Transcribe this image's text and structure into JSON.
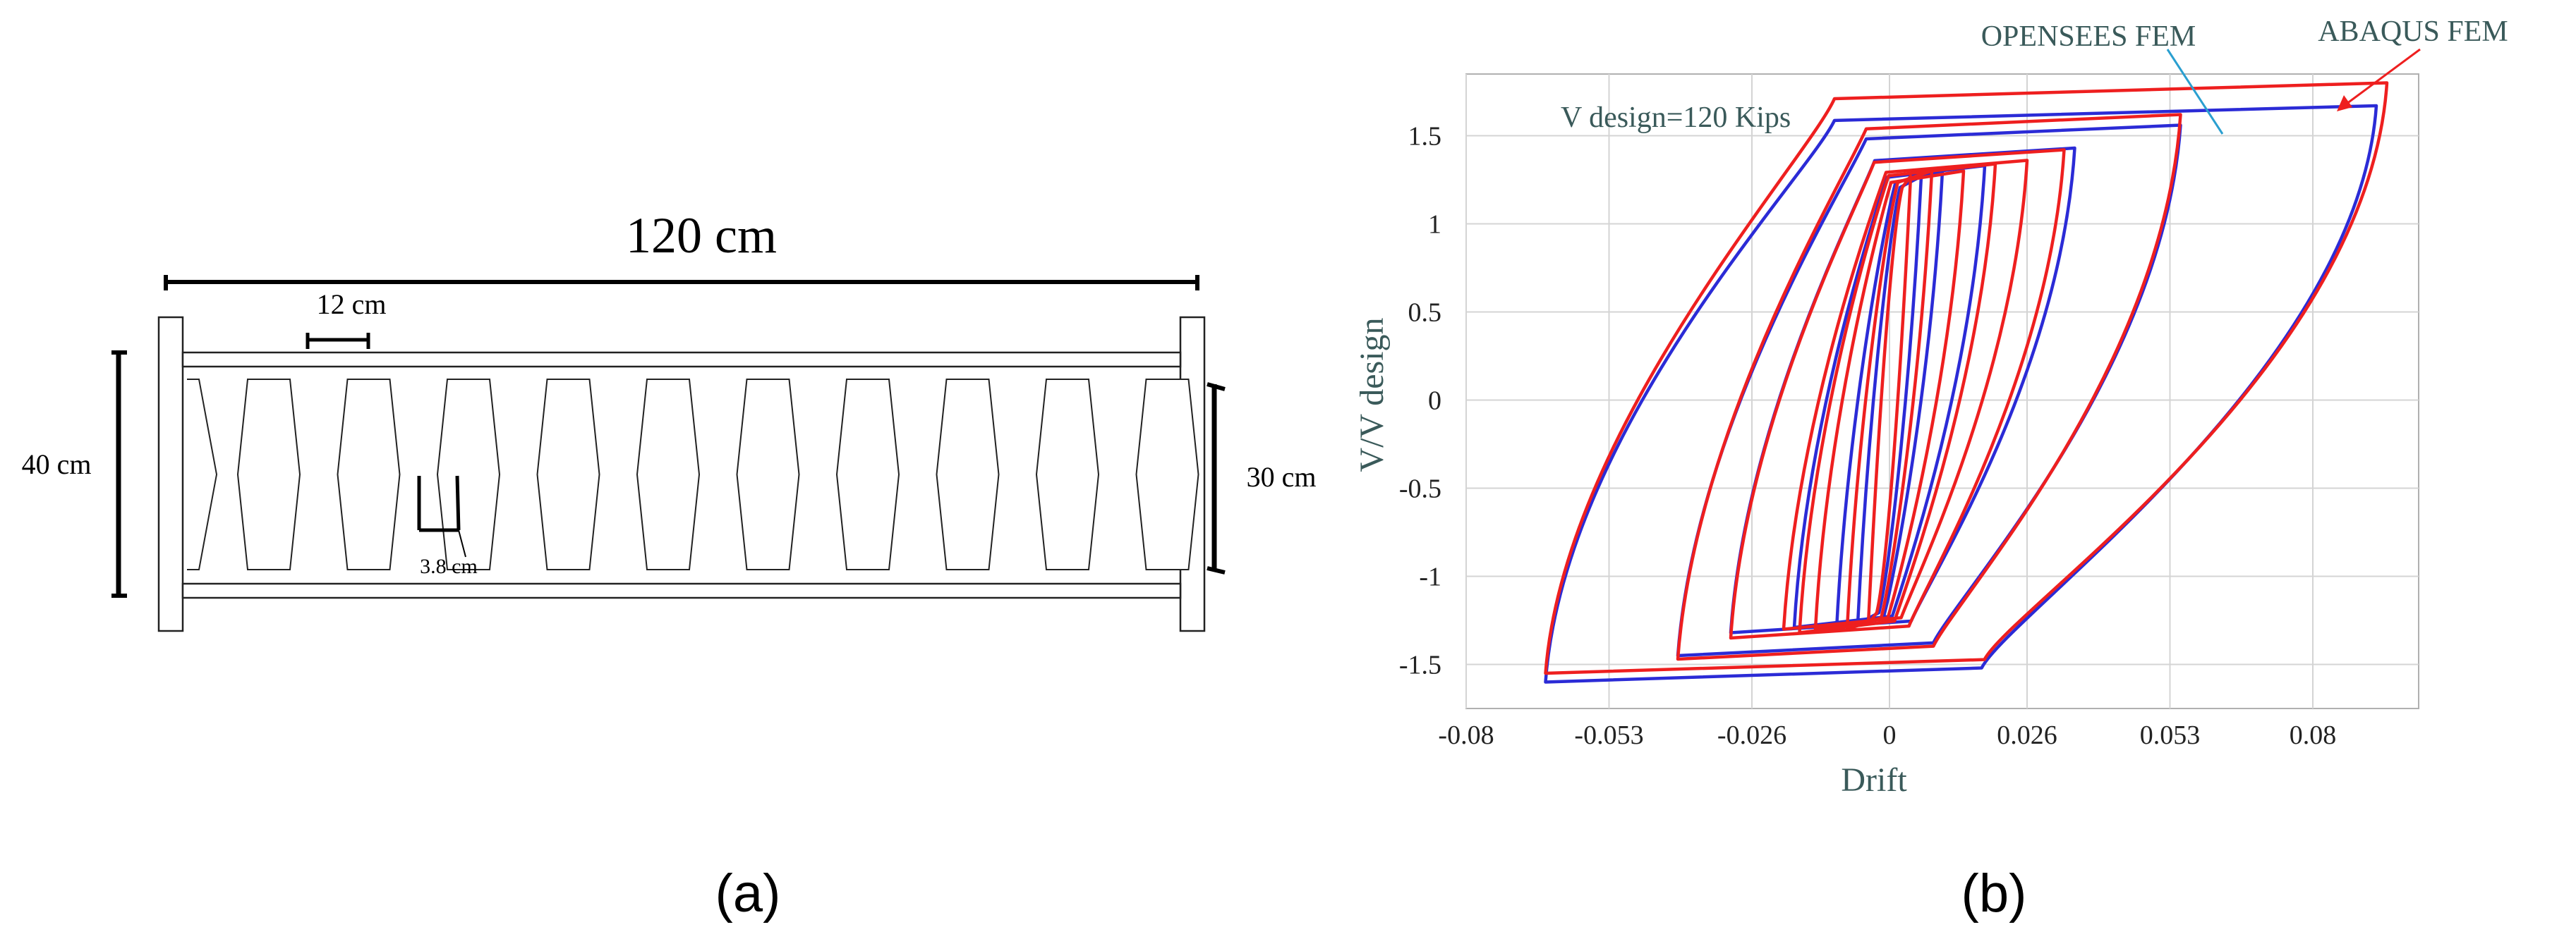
{
  "panel_a": {
    "caption": "(a)",
    "dim_overall": "120 cm",
    "dim_spacing": "12 cm",
    "dim_total_depth": "40 cm",
    "dim_web_depth": "30 cm",
    "dim_strut": "3.8 cm",
    "opening_count": 10
  },
  "panel_b": {
    "caption": "(b)",
    "annotation_design": "V design=120 Kips",
    "label_opensees": "OPENSEES FEM",
    "label_abaqus": "ABAQUS FEM",
    "colors": {
      "opensees": "#2b2bd6",
      "abaqus": "#ee1f1f",
      "axis_text": "#3a5a5a"
    }
  },
  "chart_data": {
    "type": "line",
    "xlabel": "Drift",
    "ylabel": "V/V design",
    "xlim": [
      -0.08,
      0.1
    ],
    "ylim": [
      -1.75,
      1.85
    ],
    "xticks": [
      -0.08,
      -0.053,
      -0.026,
      0,
      0.026,
      0.053,
      0.08
    ],
    "xtick_labels": [
      "-0.08",
      "-0.053",
      "-0.026",
      "0",
      "0.026",
      "0.053",
      "0.08"
    ],
    "yticks": [
      1.5,
      1,
      0.5,
      0,
      -0.5,
      -1,
      -1.5
    ],
    "ytick_labels": [
      "1.5",
      "1",
      "0.5",
      "0",
      "-0.5",
      "-1",
      "-1.5"
    ],
    "grid": true,
    "series": [
      {
        "name": "OPENSEES FEM",
        "color": "#2b2bd6",
        "loops": [
          {
            "pos_peak": [
              0.006,
              1.27
            ],
            "neg_peak": [
              -0.006,
              -1.27
            ]
          },
          {
            "pos_peak": [
              0.01,
              1.3
            ],
            "neg_peak": [
              -0.01,
              -1.3
            ]
          },
          {
            "pos_peak": [
              0.018,
              1.33
            ],
            "neg_peak": [
              -0.018,
              -1.29
            ]
          },
          {
            "pos_peak": [
              0.035,
              1.43
            ],
            "neg_peak": [
              -0.03,
              -1.32
            ]
          },
          {
            "pos_peak": [
              0.055,
              1.56
            ],
            "neg_peak": [
              -0.04,
              -1.45
            ]
          },
          {
            "pos_peak": [
              0.092,
              1.67
            ],
            "neg_peak": [
              -0.065,
              -1.6
            ]
          }
        ]
      },
      {
        "name": "ABAQUS FEM",
        "color": "#ee1f1f",
        "loops": [
          {
            "pos_peak": [
              0.004,
              1.27
            ],
            "neg_peak": [
              -0.004,
              -1.27
            ]
          },
          {
            "pos_peak": [
              0.008,
              1.3
            ],
            "neg_peak": [
              -0.008,
              -1.3
            ]
          },
          {
            "pos_peak": [
              0.014,
              1.3
            ],
            "neg_peak": [
              -0.014,
              -1.3
            ]
          },
          {
            "pos_peak": [
              0.02,
              1.34
            ],
            "neg_peak": [
              -0.017,
              -1.32
            ]
          },
          {
            "pos_peak": [
              0.026,
              1.36
            ],
            "neg_peak": [
              -0.02,
              -1.3
            ]
          },
          {
            "pos_peak": [
              0.033,
              1.42
            ],
            "neg_peak": [
              -0.03,
              -1.35
            ]
          },
          {
            "pos_peak": [
              0.055,
              1.62
            ],
            "neg_peak": [
              -0.04,
              -1.47
            ]
          },
          {
            "pos_peak": [
              0.094,
              1.8
            ],
            "neg_peak": [
              -0.065,
              -1.55
            ]
          }
        ]
      }
    ]
  }
}
